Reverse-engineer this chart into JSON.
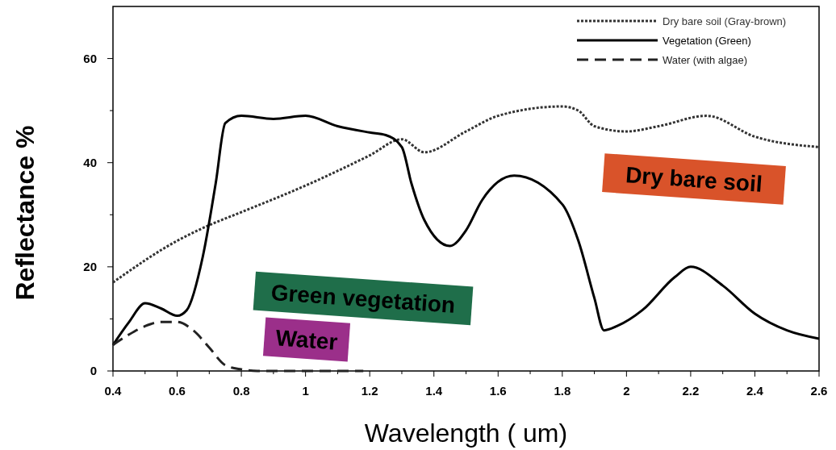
{
  "chart_data": {
    "type": "line",
    "xlabel": "Wavelength ( um)",
    "ylabel": "Reflectance %",
    "xlim": [
      0.4,
      2.6
    ],
    "ylim": [
      0,
      70
    ],
    "xticks": [
      0.4,
      {
        "value": 0.5,
        "label": null
      },
      0.6,
      {
        "value": 0.7,
        "label": null
      },
      0.8,
      {
        "value": 0.9,
        "label": null
      },
      1.0,
      {
        "value": 1.1,
        "label": null
      },
      1.2,
      {
        "value": 1.3,
        "label": null
      },
      1.4,
      {
        "value": 1.5,
        "label": null
      },
      1.6,
      {
        "value": 1.7,
        "label": null
      },
      1.8,
      {
        "value": 1.9,
        "label": null
      },
      2.0,
      {
        "value": 2.1,
        "label": null
      },
      2.2,
      {
        "value": 2.3,
        "label": null
      },
      2.4,
      {
        "value": 2.5,
        "label": null
      },
      2.6
    ],
    "yticks": [
      0,
      {
        "value": 10,
        "label": null
      },
      20,
      {
        "value": 30,
        "label": null
      },
      40,
      {
        "value": 50,
        "label": null
      },
      60
    ],
    "grid": false,
    "legend": "top right",
    "series": [
      {
        "name": "Dry bare soil (Gray-brown)",
        "color": "#333333",
        "line_style": "dotted",
        "x": [
          0.4,
          0.6,
          0.7,
          0.8,
          1.0,
          1.2,
          1.3,
          1.37,
          1.5,
          1.6,
          1.8,
          1.85,
          1.9,
          2.0,
          2.1,
          2.25,
          2.4,
          2.6
        ],
        "values": [
          17,
          25,
          28,
          30.5,
          35.6,
          41.4,
          44.5,
          42,
          46,
          49,
          50.8,
          50,
          47,
          46,
          47,
          49,
          45,
          43
        ]
      },
      {
        "name": "Vegetation (Green)",
        "color": "#000000",
        "line_style": "solid",
        "x": [
          0.4,
          0.45,
          0.5,
          0.55,
          0.6,
          0.63,
          0.68,
          0.72,
          0.75,
          0.8,
          0.9,
          1.0,
          1.1,
          1.2,
          1.25,
          1.3,
          1.33,
          1.37,
          1.45,
          1.5,
          1.55,
          1.65,
          1.8,
          1.85,
          1.9,
          1.93,
          1.97,
          2.05,
          2.15,
          2.2,
          2.3,
          2.4,
          2.5,
          2.6
        ],
        "values": [
          5,
          9.4,
          13,
          12,
          10.6,
          11.7,
          22,
          36,
          47.6,
          49,
          48.4,
          49,
          47,
          45.8,
          45.3,
          43,
          36,
          29,
          24,
          27,
          32.8,
          37.5,
          32,
          25,
          14,
          7.8,
          8.6,
          11.7,
          18,
          20,
          16.4,
          11,
          7.8,
          6.2
        ]
      },
      {
        "name": "Water (with algae)",
        "color": "#222222",
        "line_style": "dashed",
        "x": [
          0.4,
          0.45,
          0.5,
          0.55,
          0.6,
          0.65,
          0.7,
          0.75,
          0.8,
          0.85,
          1.18
        ],
        "values": [
          5,
          7,
          8.6,
          9.4,
          9.4,
          7.8,
          4.5,
          1.1,
          0.3,
          0,
          0
        ]
      }
    ],
    "annotations": [
      "Dry bare soil",
      "Green vegetation",
      "Water"
    ]
  }
}
